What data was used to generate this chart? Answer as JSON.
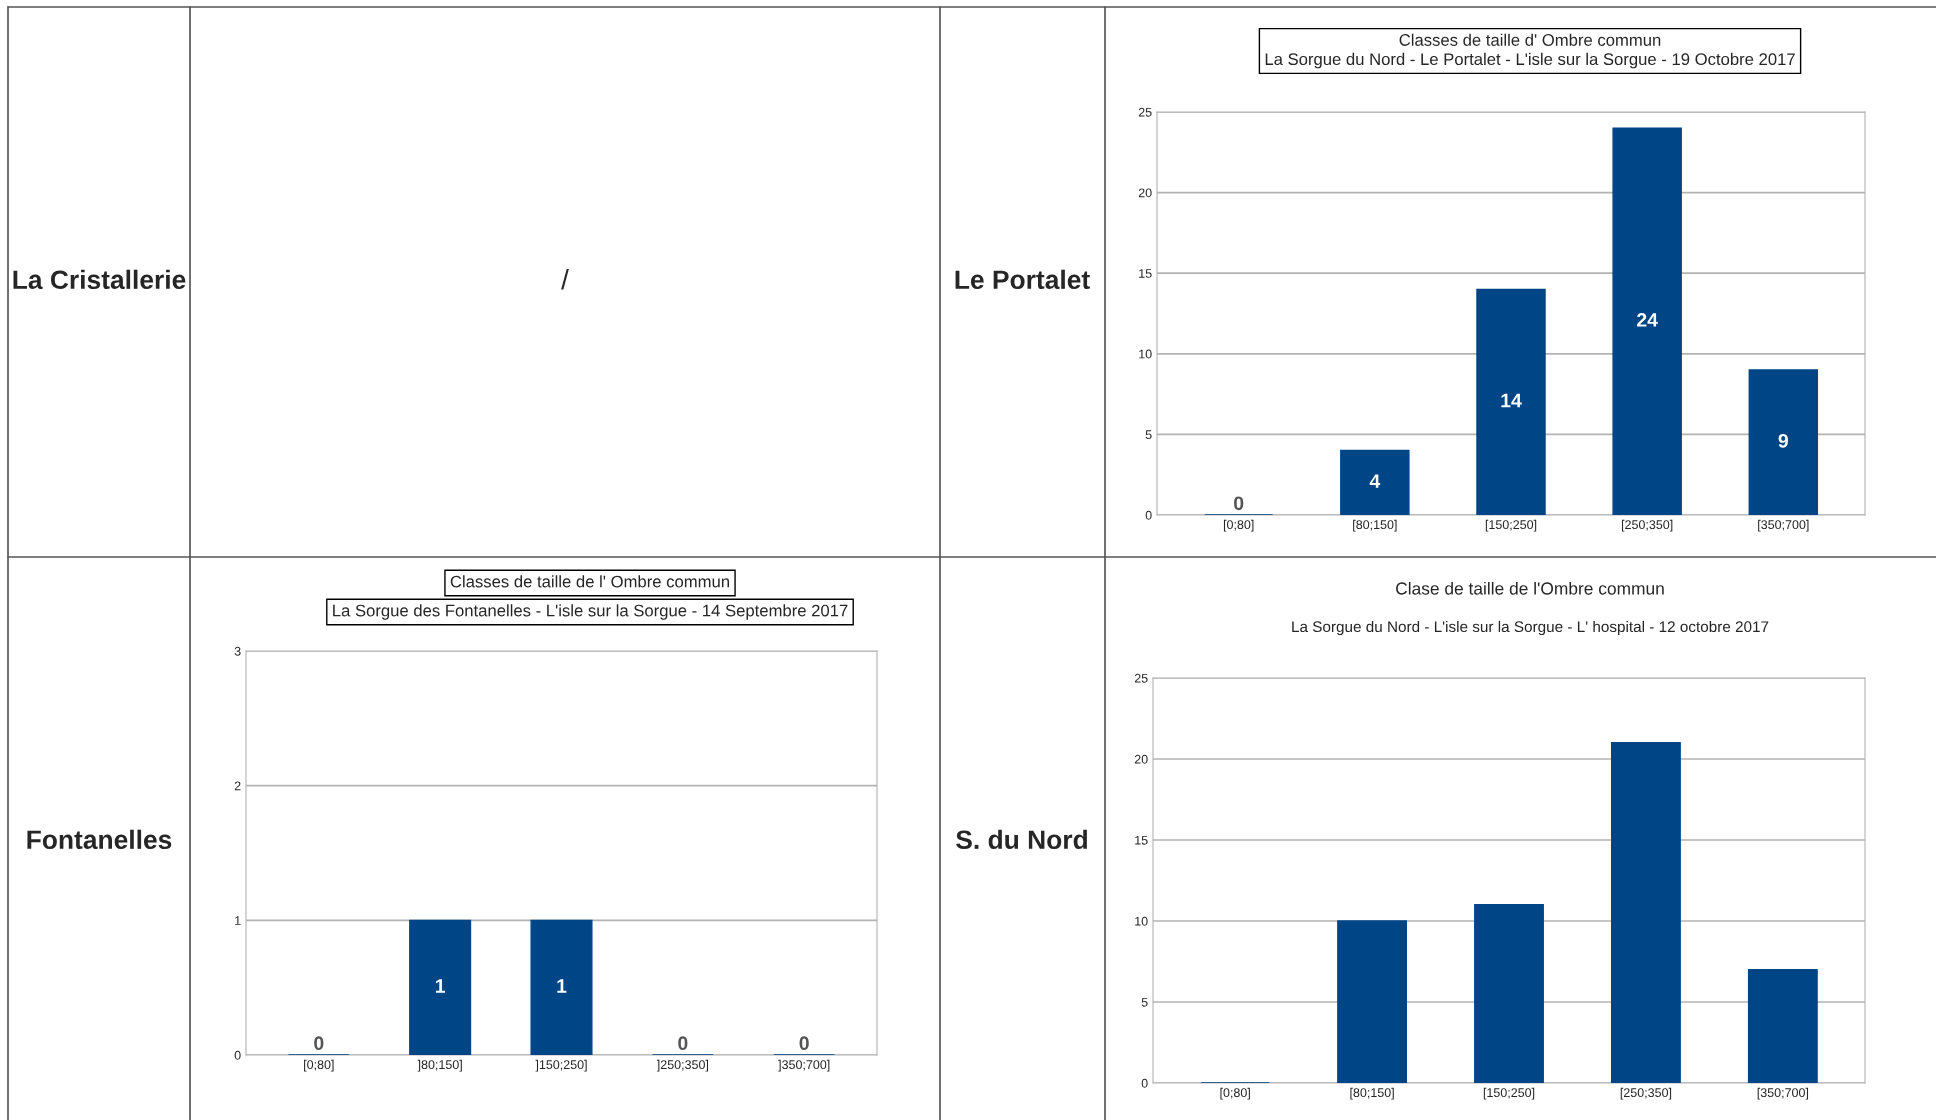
{
  "chart_data": [
    {
      "type": "other",
      "annotations": [
        "La Cristallerie",
        "/",
        "Le Portalet",
        "Fontanelles",
        "S. du Nord"
      ]
    },
    {
      "type": "bar",
      "title": "Classes de taille d' Ombre commun",
      "subtitle": "La Sorgue du Nord - Le Portalet - L'isle sur la Sorgue - 19 Octobre 2017",
      "categories": [
        "[0;80]",
        "[80;150]",
        "[150;250]",
        "[250;350]",
        "[350;700]"
      ],
      "values": [
        0,
        4,
        14,
        24,
        9
      ],
      "color": "#004586",
      "ylim": [
        0,
        25
      ],
      "yticks": [
        0,
        5,
        10,
        15,
        20,
        25
      ],
      "grid": "y",
      "data_labels": true
    },
    {
      "type": "bar",
      "title": "Classes de taille de l' Ombre commun",
      "subtitle": "La Sorgue des Fontanelles - L'isle sur la Sorgue - 14 Septembre 2017",
      "categories": [
        "[0;80]",
        "]80;150]",
        "]150;250]",
        "]250;350]",
        "]350;700]"
      ],
      "values": [
        0,
        1,
        1,
        0,
        0
      ],
      "color": "#004586",
      "ylim": [
        0,
        3
      ],
      "yticks": [
        0,
        1,
        2,
        3
      ],
      "grid": "y",
      "data_labels": true
    },
    {
      "type": "bar",
      "title": "Clase de taille de l'Ombre commun",
      "subtitle": "La Sorgue du Nord - L'isle sur la Sorgue - L' hospital - 12 octobre 2017",
      "categories": [
        "[0;80]",
        "[80;150]",
        "[150;250]",
        "[250;350]",
        "[350;700]"
      ],
      "values": [
        0,
        10,
        11,
        21,
        7
      ],
      "color": "#004586",
      "ylim": [
        0,
        25
      ],
      "yticks": [
        0,
        5,
        10,
        15,
        20,
        25
      ],
      "grid": "y"
    }
  ]
}
